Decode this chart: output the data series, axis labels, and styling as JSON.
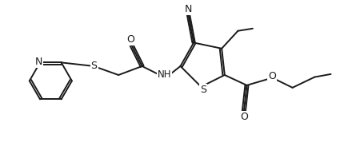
{
  "figsize": [
    4.4,
    1.88
  ],
  "dpi": 100,
  "background": "#ffffff",
  "line_color": "#1a1a1a",
  "line_width": 1.4,
  "font_size": 8.5,
  "xlim": [
    0,
    11
  ],
  "ylim": [
    -0.3,
    4.8
  ]
}
